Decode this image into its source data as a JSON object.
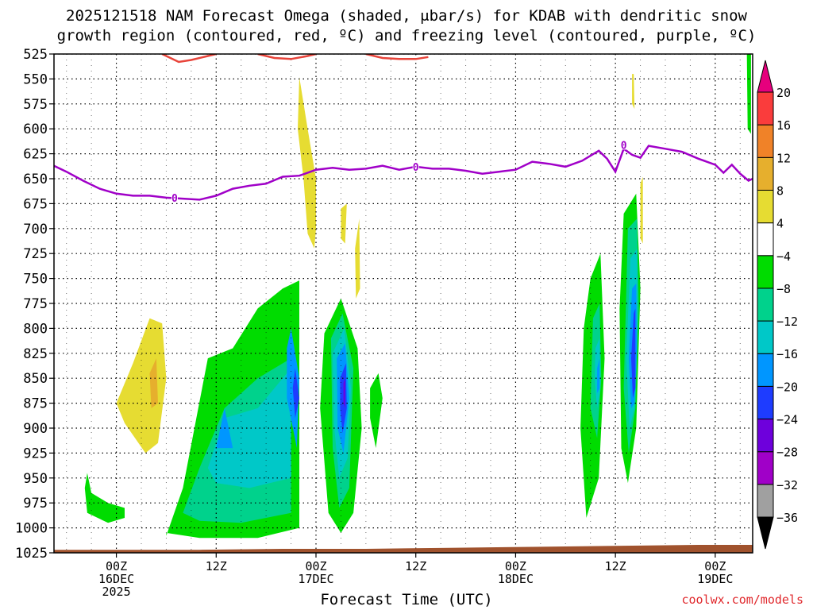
{
  "chart_data": {
    "type": "heatmap",
    "title_lines": [
      "2025121518 NAM Forecast Omega (shaded, μbar/s) for KDAB with dendritic snow",
      "growth region (contoured, red, ºC) and freezing level (contoured, purple, ºC)"
    ],
    "xlabel": "Forecast Time (UTC)",
    "credit": "coolwx.com/models",
    "x_range_hours": [
      -7.5,
      76.5
    ],
    "x_ticks": [
      {
        "hour": 0,
        "lines": [
          "00Z",
          "16DEC",
          "2025"
        ]
      },
      {
        "hour": 12,
        "lines": [
          "12Z"
        ]
      },
      {
        "hour": 24,
        "lines": [
          "00Z",
          "17DEC"
        ]
      },
      {
        "hour": 36,
        "lines": [
          "12Z"
        ]
      },
      {
        "hour": 48,
        "lines": [
          "00Z",
          "18DEC"
        ]
      },
      {
        "hour": 60,
        "lines": [
          "12Z"
        ]
      },
      {
        "hour": 72,
        "lines": [
          "00Z",
          "19DEC"
        ]
      }
    ],
    "y_range_mb": [
      525,
      1025
    ],
    "y_ticks": [
      525,
      550,
      575,
      600,
      625,
      650,
      675,
      700,
      725,
      750,
      775,
      800,
      825,
      850,
      875,
      900,
      925,
      950,
      975,
      1000,
      1025
    ],
    "colorbar": {
      "levels": [
        -36,
        -32,
        -28,
        -24,
        -20,
        -16,
        -12,
        -8,
        -4,
        4,
        8,
        12,
        16,
        20
      ],
      "label_values": [
        "20",
        "16",
        "12",
        "8",
        "4",
        "−4",
        "−8",
        "−12",
        "−16",
        "−20",
        "−24",
        "−28",
        "−32",
        "−36"
      ],
      "colors": [
        "#000000",
        "#a0a0a0",
        "#a000c8",
        "#6e00dc",
        "#1e3cff",
        "#0096ff",
        "#00c8c8",
        "#00d28c",
        "#00dc00",
        "#ffffff",
        "#e6dc32",
        "#e6af2d",
        "#f08228",
        "#fa3c3c",
        "#e6007d"
      ]
    },
    "colors": {
      "freezing": "#a000c8",
      "dgz": "#e8443a",
      "ground": "#a0522d",
      "lt": "#00dc00",
      "mg": "#00d28c",
      "cy": "#00c8c8",
      "lb": "#0096ff",
      "bl": "#1e3cff",
      "vi": "#6e00dc",
      "y1": "#e6dc32",
      "y2": "#e6af2d"
    },
    "freezing_level_mb": [
      [
        -7.5,
        637
      ],
      [
        -6,
        643
      ],
      [
        -4,
        652
      ],
      [
        -2,
        660
      ],
      [
        0,
        665
      ],
      [
        2,
        667
      ],
      [
        4,
        667
      ],
      [
        6,
        669
      ],
      [
        8,
        670
      ],
      [
        10,
        671
      ],
      [
        12,
        667
      ],
      [
        14,
        660
      ],
      [
        16,
        657
      ],
      [
        18,
        655
      ],
      [
        20,
        648
      ],
      [
        22,
        647
      ],
      [
        24,
        641
      ],
      [
        26,
        639
      ],
      [
        28,
        641
      ],
      [
        30,
        640
      ],
      [
        32,
        637
      ],
      [
        34,
        641
      ],
      [
        36,
        638
      ],
      [
        38,
        640
      ],
      [
        40,
        640
      ],
      [
        42,
        642
      ],
      [
        44,
        645
      ],
      [
        46,
        643
      ],
      [
        48,
        641
      ],
      [
        50,
        633
      ],
      [
        52,
        635
      ],
      [
        54,
        638
      ],
      [
        56,
        632
      ],
      [
        58,
        622
      ],
      [
        59,
        630
      ],
      [
        60,
        643
      ],
      [
        61,
        620
      ],
      [
        62,
        626
      ],
      [
        63,
        629
      ],
      [
        64,
        617
      ],
      [
        66,
        620
      ],
      [
        68,
        623
      ],
      [
        70,
        630
      ],
      [
        72,
        636
      ],
      [
        73,
        644
      ],
      [
        74,
        636
      ],
      [
        75,
        645
      ],
      [
        76,
        652
      ],
      [
        76.5,
        650
      ]
    ],
    "freezing_labels": [
      {
        "hour": 7,
        "mb": 669,
        "text": "0"
      },
      {
        "hour": 36,
        "mb": 638,
        "text": "0"
      },
      {
        "hour": 61,
        "mb": 616,
        "text": "0"
      }
    ],
    "dgz_contours": [
      [
        [
          5.5,
          525
        ],
        [
          7.5,
          533
        ],
        [
          9,
          531
        ],
        [
          11,
          527
        ],
        [
          12,
          525
        ]
      ],
      [
        [
          17,
          525
        ],
        [
          19,
          529
        ],
        [
          21,
          530
        ],
        [
          23,
          527
        ],
        [
          24,
          525
        ]
      ],
      [
        [
          30,
          525
        ],
        [
          32,
          529
        ],
        [
          34,
          530
        ],
        [
          36,
          530
        ],
        [
          37.5,
          528
        ]
      ]
    ],
    "ground_mb": [
      [
        -7.5,
        1022
      ],
      [
        10,
        1022
      ],
      [
        20,
        1021
      ],
      [
        30,
        1021
      ],
      [
        40,
        1020
      ],
      [
        50,
        1019
      ],
      [
        60,
        1018
      ],
      [
        70,
        1017
      ],
      [
        76.5,
        1017
      ]
    ],
    "omega_blobs": [
      {
        "color": "lt",
        "pts": [
          [
            6,
            1008
          ],
          [
            8,
            960
          ],
          [
            11,
            830
          ],
          [
            14,
            820
          ],
          [
            17,
            780
          ],
          [
            20,
            760
          ],
          [
            22,
            752
          ],
          [
            22,
            1000
          ],
          [
            17,
            1010
          ],
          [
            10,
            1010
          ],
          [
            6,
            1005
          ]
        ]
      },
      {
        "color": "mg",
        "pts": [
          [
            8,
            985
          ],
          [
            10,
            940
          ],
          [
            13,
            880
          ],
          [
            17,
            850
          ],
          [
            21,
            830
          ],
          [
            21,
            985
          ],
          [
            15,
            995
          ],
          [
            10,
            993
          ]
        ]
      },
      {
        "color": "cy",
        "pts": [
          [
            11,
            940
          ],
          [
            13,
            890
          ],
          [
            17,
            880
          ],
          [
            21,
            840
          ],
          [
            21,
            950
          ],
          [
            16,
            960
          ],
          [
            12,
            955
          ]
        ]
      },
      {
        "color": "lb",
        "pts": [
          [
            12,
            920
          ],
          [
            13,
            880
          ],
          [
            14,
            920
          ]
        ]
      },
      {
        "color": "lb",
        "pts": [
          [
            21,
            800
          ],
          [
            22,
            850
          ],
          [
            21.7,
            920
          ],
          [
            20.5,
            870
          ],
          [
            20.5,
            820
          ]
        ]
      },
      {
        "color": "bl",
        "pts": [
          [
            21.5,
            840
          ],
          [
            22,
            870
          ],
          [
            21.5,
            890
          ],
          [
            21.2,
            860
          ]
        ]
      },
      {
        "color": "lt",
        "pts": [
          [
            -3.5,
            945
          ],
          [
            -3,
            965
          ],
          [
            -1,
            975
          ],
          [
            1,
            980
          ],
          [
            1,
            990
          ],
          [
            -1,
            995
          ],
          [
            -3.5,
            985
          ],
          [
            -3.8,
            960
          ]
        ]
      },
      {
        "color": "lt",
        "pts": [
          [
            25,
            805
          ],
          [
            27,
            770
          ],
          [
            29,
            820
          ],
          [
            29.5,
            900
          ],
          [
            28.5,
            985
          ],
          [
            27,
            1005
          ],
          [
            25.5,
            985
          ],
          [
            24.5,
            880
          ]
        ]
      },
      {
        "color": "mg",
        "pts": [
          [
            25.8,
            810
          ],
          [
            27.2,
            785
          ],
          [
            28.5,
            840
          ],
          [
            28,
            960
          ],
          [
            26.8,
            980
          ],
          [
            26,
            920
          ]
        ]
      },
      {
        "color": "cy",
        "pts": [
          [
            26,
            825
          ],
          [
            27.4,
            800
          ],
          [
            28.2,
            860
          ],
          [
            27.8,
            930
          ],
          [
            26.8,
            950
          ],
          [
            26.2,
            900
          ]
        ]
      },
      {
        "color": "lb",
        "pts": [
          [
            26.5,
            830
          ],
          [
            27.5,
            815
          ],
          [
            28,
            870
          ],
          [
            27.3,
            925
          ],
          [
            26.6,
            900
          ]
        ]
      },
      {
        "color": "bl",
        "pts": [
          [
            26.9,
            850
          ],
          [
            27.6,
            835
          ],
          [
            27.7,
            880
          ],
          [
            27.2,
            905
          ],
          [
            26.9,
            880
          ]
        ]
      },
      {
        "color": "vi",
        "pts": [
          [
            27.3,
            855
          ],
          [
            27.5,
            850
          ],
          [
            27.5,
            880
          ],
          [
            27.3,
            875
          ]
        ]
      },
      {
        "color": "lt",
        "pts": [
          [
            30.5,
            860
          ],
          [
            31.5,
            845
          ],
          [
            32,
            870
          ],
          [
            31.2,
            920
          ],
          [
            30.5,
            890
          ]
        ]
      },
      {
        "color": "lt",
        "pts": [
          [
            57,
            750
          ],
          [
            58.2,
            725
          ],
          [
            58.7,
            830
          ],
          [
            58,
            950
          ],
          [
            56.5,
            990
          ],
          [
            55.8,
            900
          ],
          [
            56.2,
            800
          ]
        ]
      },
      {
        "color": "mg",
        "pts": [
          [
            57.3,
            790
          ],
          [
            58.1,
            775
          ],
          [
            58.3,
            850
          ],
          [
            57.8,
            910
          ],
          [
            57,
            880
          ]
        ]
      },
      {
        "color": "cy",
        "pts": [
          [
            57.6,
            820
          ],
          [
            58.1,
            810
          ],
          [
            58.2,
            860
          ],
          [
            57.8,
            880
          ],
          [
            57.5,
            850
          ]
        ]
      },
      {
        "color": "lb",
        "pts": [
          [
            57.8,
            840
          ],
          [
            58.1,
            830
          ],
          [
            58.1,
            860
          ],
          [
            57.8,
            865
          ]
        ]
      },
      {
        "color": "lt",
        "pts": [
          [
            61,
            685
          ],
          [
            62.5,
            665
          ],
          [
            63,
            760
          ],
          [
            62.5,
            900
          ],
          [
            61.5,
            955
          ],
          [
            60.7,
            920
          ],
          [
            60.5,
            780
          ]
        ]
      },
      {
        "color": "mg",
        "pts": [
          [
            61.5,
            700
          ],
          [
            62.6,
            690
          ],
          [
            62.8,
            780
          ],
          [
            62.4,
            880
          ],
          [
            61.6,
            925
          ],
          [
            61,
            860
          ]
        ]
      },
      {
        "color": "cy",
        "pts": [
          [
            61.8,
            730
          ],
          [
            62.6,
            720
          ],
          [
            62.6,
            800
          ],
          [
            62.3,
            880
          ],
          [
            61.7,
            900
          ],
          [
            61.3,
            830
          ]
        ]
      },
      {
        "color": "lb",
        "pts": [
          [
            62,
            760
          ],
          [
            62.5,
            755
          ],
          [
            62.6,
            820
          ],
          [
            62.3,
            875
          ],
          [
            61.9,
            880
          ],
          [
            61.6,
            830
          ]
        ]
      },
      {
        "color": "bl",
        "pts": [
          [
            62.2,
            785
          ],
          [
            62.4,
            780
          ],
          [
            62.4,
            860
          ],
          [
            62.1,
            870
          ],
          [
            61.9,
            830
          ]
        ]
      },
      {
        "color": "lt",
        "pts": [
          [
            75.8,
            525
          ],
          [
            76.3,
            525
          ],
          [
            76.3,
            605
          ],
          [
            75.9,
            600
          ]
        ]
      },
      {
        "color": "y1",
        "pts": [
          [
            22,
            548
          ],
          [
            23,
            600
          ],
          [
            24,
            650
          ],
          [
            24,
            700
          ],
          [
            23.8,
            720
          ],
          [
            23,
            705
          ],
          [
            22.5,
            650
          ],
          [
            21.8,
            600
          ]
        ]
      },
      {
        "color": "y1",
        "pts": [
          [
            27,
            680
          ],
          [
            27.7,
            675
          ],
          [
            27.5,
            715
          ],
          [
            27,
            710
          ]
        ]
      },
      {
        "color": "y1",
        "pts": [
          [
            28.7,
            720
          ],
          [
            29.2,
            690
          ],
          [
            29.3,
            760
          ],
          [
            28.8,
            770
          ]
        ]
      },
      {
        "color": "y1",
        "pts": [
          [
            62,
            545
          ],
          [
            62.2,
            545
          ],
          [
            62.3,
            580
          ],
          [
            62,
            575
          ]
        ]
      },
      {
        "color": "y1",
        "pts": [
          [
            63,
            655
          ],
          [
            63.3,
            648
          ],
          [
            63.3,
            715
          ],
          [
            63,
            710
          ]
        ]
      },
      {
        "color": "y1",
        "pts": [
          [
            0,
            875
          ],
          [
            2,
            835
          ],
          [
            4,
            790
          ],
          [
            5.5,
            795
          ],
          [
            6,
            850
          ],
          [
            5,
            915
          ],
          [
            3.5,
            925
          ],
          [
            1,
            895
          ]
        ]
      },
      {
        "color": "y2",
        "pts": [
          [
            4,
            845
          ],
          [
            4.8,
            830
          ],
          [
            5,
            875
          ],
          [
            4.2,
            880
          ]
        ]
      }
    ]
  }
}
